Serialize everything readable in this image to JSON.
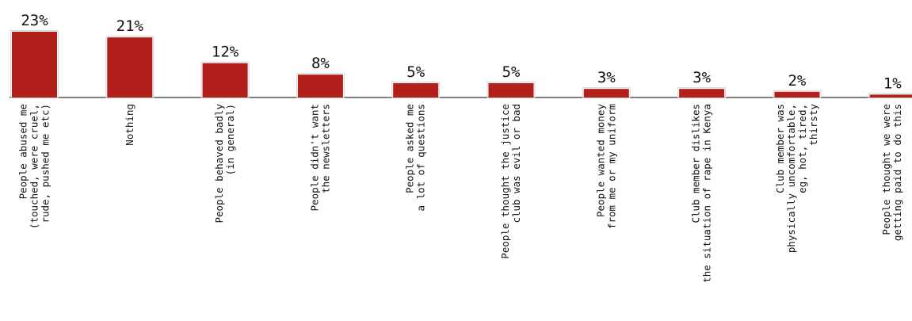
{
  "chart_data": {
    "type": "bar",
    "categories": [
      "People abused me\n(touched, were cruel,\nrude, pushed me etc)",
      "Nothing",
      "People behaved badly\n(in general)",
      "People didn't want\nthe newsletters",
      "People asked me\na lot of questions",
      "People thought the justice\nclub was evil or bad",
      "People wanted money\nfrom me or my uniform",
      "Club member dislikes\nthe situation of rape in Kenya",
      "Club member was\nphysically uncomfortable,\neg, hot, tired,\nthirsty",
      "People thought we were\ngetting paid to do this"
    ],
    "values": [
      23,
      21,
      12,
      8,
      5,
      5,
      3,
      3,
      2,
      1
    ],
    "value_labels": [
      "23%",
      "21%",
      "12%",
      "8%",
      "5%",
      "5%",
      "3%",
      "3%",
      "2%",
      "1%"
    ],
    "ylim": [
      0,
      23
    ],
    "grid": false,
    "colors": {
      "bar": "#b2201c",
      "bar_outline": "#d6d6d6",
      "axis": "#555555"
    }
  }
}
